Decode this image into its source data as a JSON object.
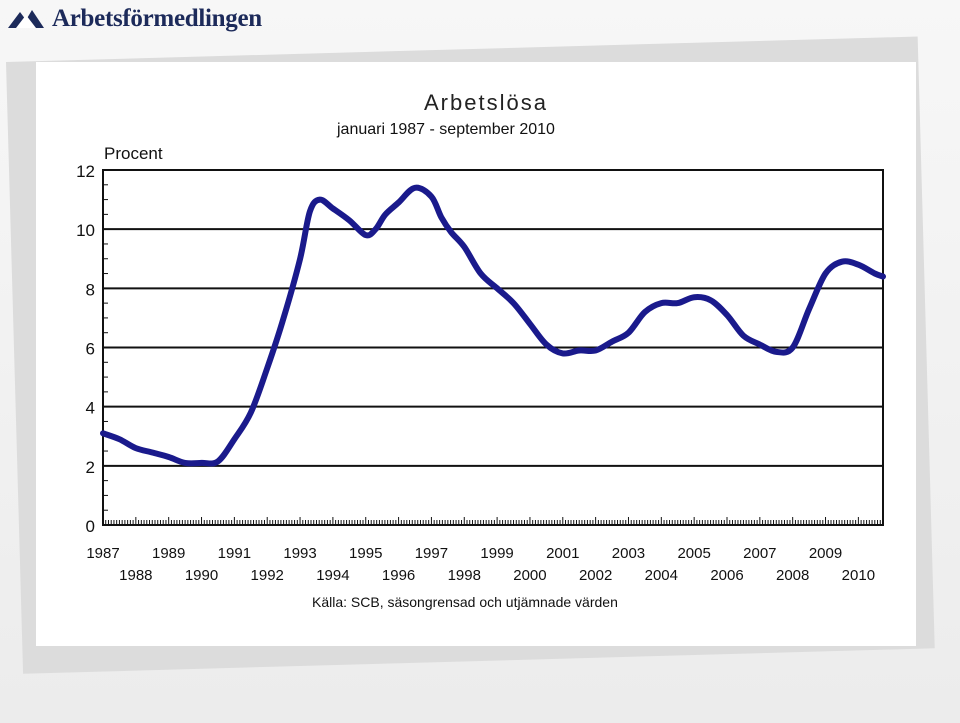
{
  "brand": {
    "name": "Arbetsförmedlingen"
  },
  "chart_data": {
    "type": "line",
    "title": "Arbetslösa",
    "subtitle": "januari 1987 - september 2010",
    "ylabel": "Procent",
    "xlabel": "",
    "source": "Källa: SCB, säsongrensad och utjämnade värden",
    "ylim": [
      0,
      12
    ],
    "xlim": [
      1987.0,
      2010.75
    ],
    "yticks": [
      "0",
      "2",
      "4",
      "6",
      "8",
      "10",
      "12"
    ],
    "xticks_top": [
      "1987",
      "1989",
      "1991",
      "1993",
      "1995",
      "1997",
      "1999",
      "2001",
      "2003",
      "2005",
      "2007",
      "2009"
    ],
    "xticks_bottom": [
      "1988",
      "1990",
      "1992",
      "1994",
      "1996",
      "1998",
      "2000",
      "2002",
      "2004",
      "2006",
      "2008",
      "2010"
    ],
    "grid": "horizontal",
    "line_color": "#1a1a8c",
    "series": [
      {
        "x": [
          1987.0,
          1987.5,
          1988.0,
          1988.5,
          1989.0,
          1989.5,
          1990.0,
          1990.5,
          1991.0,
          1991.5,
          1992.0,
          1992.5,
          1993.0,
          1993.3,
          1993.6,
          1994.0,
          1994.5,
          1995.0,
          1995.3,
          1995.6,
          1996.0,
          1996.5,
          1997.0,
          1997.3,
          1997.6,
          1998.0,
          1998.5,
          1999.0,
          1999.5,
          2000.0,
          2000.5,
          2001.0,
          2001.5,
          2002.0,
          2002.5,
          2003.0,
          2003.5,
          2004.0,
          2004.5,
          2005.0,
          2005.5,
          2006.0,
          2006.5,
          2007.0,
          2007.5,
          2008.0,
          2008.5,
          2009.0,
          2009.5,
          2010.0,
          2010.5,
          2010.75
        ],
        "values": [
          3.1,
          2.9,
          2.6,
          2.45,
          2.3,
          2.1,
          2.1,
          2.15,
          2.9,
          3.8,
          5.3,
          7.0,
          9.0,
          10.6,
          11.0,
          10.7,
          10.3,
          9.8,
          10.0,
          10.5,
          10.9,
          11.4,
          11.1,
          10.4,
          9.9,
          9.4,
          8.5,
          8.0,
          7.5,
          6.8,
          6.1,
          5.8,
          5.9,
          5.9,
          6.2,
          6.5,
          7.2,
          7.5,
          7.5,
          7.7,
          7.6,
          7.1,
          6.4,
          6.1,
          5.85,
          6.0,
          7.3,
          8.5,
          8.9,
          8.8,
          8.5,
          8.4
        ]
      }
    ]
  }
}
